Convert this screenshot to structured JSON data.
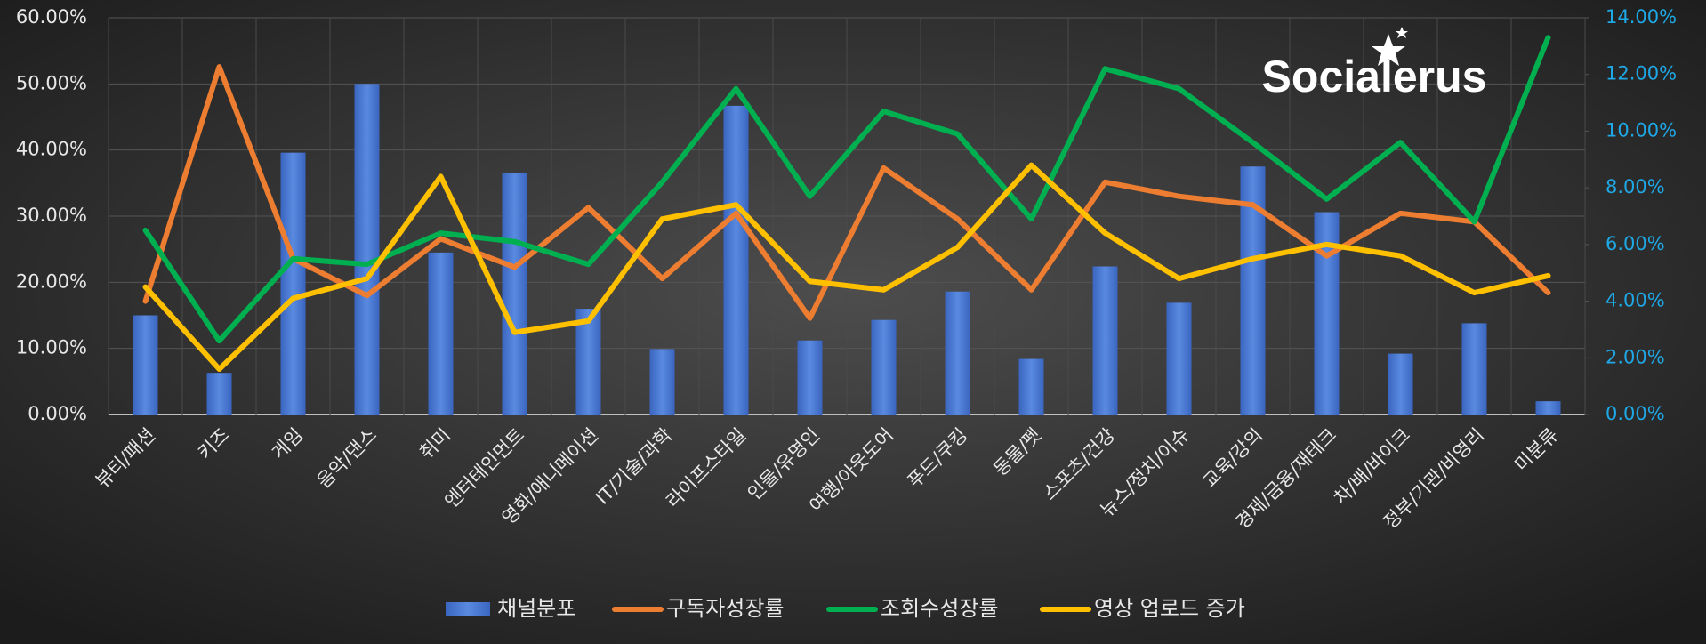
{
  "chart_data": {
    "type": "bar-line",
    "logo": "Socialerus",
    "categories": [
      "뷰티/패션",
      "키즈",
      "게임",
      "음악/댄스",
      "취미",
      "엔터테인먼트",
      "영화/애니메이션",
      "IT/기술/과학",
      "라이프스타일",
      "인물/유명인",
      "여행/아웃도어",
      "푸드/쿠킹",
      "동물/펫",
      "스포츠/건강",
      "뉴스/정치/이슈",
      "교육/강의",
      "경제/금융/재테크",
      "차/배/바이크",
      "정부/기관/비영리",
      "미분류"
    ],
    "series": [
      {
        "name": "채널분포",
        "type": "bar",
        "color": "#4472c4",
        "axis": "y",
        "values": [
          15,
          6.3,
          39.6,
          50,
          24.5,
          36.5,
          16,
          9.9,
          46.7,
          11.2,
          14.3,
          18.6,
          8.4,
          22.4,
          16.9,
          37.5,
          30.6,
          9.2,
          13.8,
          2.0
        ]
      },
      {
        "name": "구독자성장률",
        "type": "line",
        "color": "#ed7d31",
        "axis": "y2",
        "values": [
          4.0,
          12.27,
          5.5,
          4.2,
          6.2,
          5.2,
          7.3,
          4.8,
          7.1,
          3.4,
          8.7,
          6.9,
          4.4,
          8.2,
          7.7,
          7.4,
          5.6,
          7.1,
          6.8,
          4.3
        ]
      },
      {
        "name": "조회수성장률",
        "type": "line",
        "color": "#00b050",
        "axis": "y2",
        "values": [
          6.5,
          2.6,
          5.5,
          5.3,
          6.4,
          6.1,
          5.3,
          8.2,
          11.5,
          7.7,
          10.7,
          9.9,
          6.9,
          12.2,
          11.5,
          9.6,
          7.6,
          9.6,
          6.8,
          13.3
        ]
      },
      {
        "name": "영상 업로드 증가",
        "type": "line",
        "color": "#ffc000",
        "axis": "y2",
        "values": [
          4.5,
          1.6,
          4.1,
          4.8,
          8.4,
          2.9,
          3.3,
          6.9,
          7.4,
          4.7,
          4.4,
          5.9,
          8.8,
          6.4,
          4.8,
          5.5,
          6.0,
          5.6,
          4.3,
          4.9
        ]
      }
    ],
    "ylim": [
      0,
      60
    ],
    "yticks": [
      {
        "value": 0,
        "label": "0.00%"
      },
      {
        "value": 10,
        "label": "10.00%"
      },
      {
        "value": 20,
        "label": "20.00%"
      },
      {
        "value": 30,
        "label": "30.00%"
      },
      {
        "value": 40,
        "label": "40.00%"
      },
      {
        "value": 50,
        "label": "50.00%"
      },
      {
        "value": 60,
        "label": "60.00%"
      }
    ],
    "y2lim": [
      0,
      14
    ],
    "y2ticks": [
      {
        "value": 0,
        "label": "0.00%"
      },
      {
        "value": 2,
        "label": "2.00%"
      },
      {
        "value": 4,
        "label": "4.00%"
      },
      {
        "value": 6,
        "label": "6.00%"
      },
      {
        "value": 8,
        "label": "8.00%"
      },
      {
        "value": 10,
        "label": "10.00%"
      },
      {
        "value": 12,
        "label": "12.00%"
      },
      {
        "value": 14,
        "label": "14.00%"
      }
    ],
    "grid": true,
    "legend": "bottom"
  }
}
